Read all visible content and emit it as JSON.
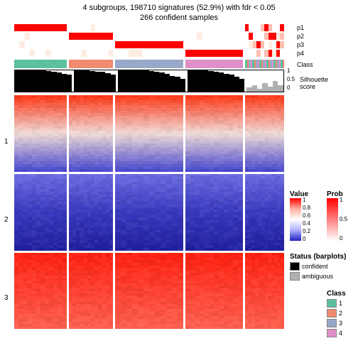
{
  "title": {
    "line1": "4 subgroups, 198710 signatures (52.9%) with fdr < 0.05",
    "line2": "266 confident samples"
  },
  "probTracks": {
    "labels": [
      "p1",
      "p2",
      "p3",
      "p4"
    ],
    "cols": 5,
    "colWidths": [
      0.2,
      0.17,
      0.26,
      0.22,
      0.15
    ],
    "red": "#ff0000",
    "lightred": "#ffc0b0",
    "faintred": "#ffece0",
    "white": "#ffffff"
  },
  "classTrack": {
    "colors": [
      "#5bc0a0",
      "#f08a70",
      "#98a8c8",
      "#e090c8",
      "#d0d0d0"
    ],
    "widths": [
      0.2,
      0.17,
      0.26,
      0.22,
      0.15
    ]
  },
  "silhouette": {
    "label": "Silhouette\nscore",
    "ticks": [
      "0",
      "0.5",
      "1"
    ],
    "heights": [
      [
        1.0,
        1.0,
        1.0,
        1.0,
        1.0,
        1.0,
        0.98,
        0.95,
        0.9,
        0.85,
        0.8
      ],
      [
        1.0,
        1.0,
        1.0,
        0.98,
        0.95,
        0.92,
        0.88,
        0.8
      ],
      [
        1.0,
        1.0,
        1.0,
        1.0,
        1.0,
        1.0,
        0.98,
        0.95,
        0.9,
        0.82,
        0.75,
        0.7,
        0.6
      ],
      [
        1.0,
        1.0,
        1.0,
        1.0,
        0.98,
        0.95,
        0.9,
        0.85,
        0.8,
        0.7,
        0.6
      ],
      [
        0.2,
        0.3,
        0.15,
        0.4,
        0.25,
        0.5,
        0.3
      ]
    ],
    "ambiguousLast": true,
    "confident": "#000000",
    "ambiguous": "#b0b0b0"
  },
  "heatmap": {
    "panels": 3,
    "cols": 5,
    "panelLabels": [
      "1",
      "2",
      "3"
    ],
    "panelRows": 30,
    "colsPerCol": 12,
    "schemes": [
      {
        "top": "#ff3a1a",
        "mid": "#f0dcd8",
        "bot": "#4a4ad0"
      },
      {
        "top": "#6a6ae0",
        "mid": "#3838c0",
        "bot": "#2020a0"
      },
      {
        "top": "#ff2010",
        "mid": "#ff4030",
        "bot": "#ff6050"
      }
    ]
  },
  "legends": {
    "value": {
      "title": "Value",
      "stops": [
        "#ff0000",
        "#ffb0a0",
        "#ffffff",
        "#b0b0ff",
        "#2020c0"
      ],
      "labels": [
        "1",
        "0.8",
        "0.6",
        "0.4",
        "0.2",
        "0"
      ]
    },
    "prob": {
      "title": "Prob",
      "stops": [
        "#ff0000",
        "#ffffff"
      ],
      "labels": [
        "1",
        "0.5",
        "0"
      ]
    },
    "status": {
      "title": "Status (barplots)",
      "items": [
        {
          "label": "confident",
          "color": "#000000"
        },
        {
          "label": "ambiguous",
          "color": "#b0b0b0"
        }
      ]
    },
    "class": {
      "title": "Class",
      "items": [
        {
          "label": "1",
          "color": "#5bc0a0"
        },
        {
          "label": "2",
          "color": "#f08a70"
        },
        {
          "label": "3",
          "color": "#98a8c8"
        },
        {
          "label": "4",
          "color": "#e090c8"
        }
      ]
    }
  }
}
